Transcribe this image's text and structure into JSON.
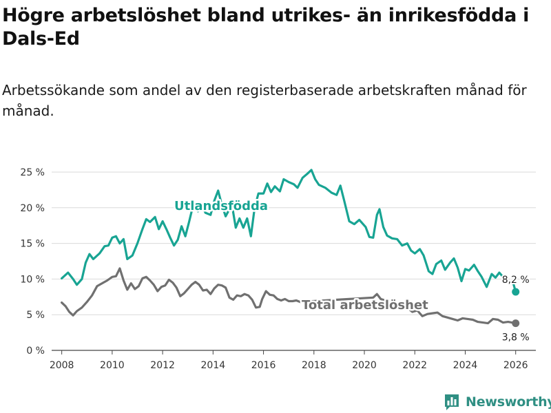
{
  "title": "Högre arbetslöshet bland utrikes- än inrikesfödda i Dals-Ed",
  "subtitle": "Arbetssökande som andel av den registerbaserade arbetskraften månad för månad.",
  "brand": {
    "name": "Newsworthy",
    "icon": "bar-chart-logo-icon",
    "color": "#2f8f83"
  },
  "chart_data": {
    "type": "line",
    "title": "Högre arbetslöshet bland utrikes- än inrikesfödda i Dals-Ed",
    "xlabel": "",
    "ylabel": "",
    "xlim": [
      2007.6,
      2026.8
    ],
    "ylim": [
      0,
      25
    ],
    "grid": true,
    "x_ticks": [
      2008,
      2010,
      2012,
      2014,
      2016,
      2018,
      2020,
      2022,
      2024,
      2026
    ],
    "x_tick_labels": [
      "2008",
      "2010",
      "2012",
      "2014",
      "2016",
      "2018",
      "2020",
      "2022",
      "2024",
      "2026"
    ],
    "y_ticks": [
      0,
      5,
      10,
      15,
      20,
      25
    ],
    "y_tick_labels": [
      "0 %",
      "5 %",
      "10 %",
      "15 %",
      "20 %",
      "25 %"
    ],
    "series": [
      {
        "name": "Utlandsfödda",
        "color": "#18a493",
        "end_label": "8,2 %",
        "points": [
          [
            2008.0,
            10.1
          ],
          [
            2008.25,
            10.9
          ],
          [
            2008.45,
            10.0
          ],
          [
            2008.6,
            9.2
          ],
          [
            2008.8,
            10.0
          ],
          [
            2008.95,
            12.3
          ],
          [
            2009.1,
            13.5
          ],
          [
            2009.25,
            12.8
          ],
          [
            2009.5,
            13.6
          ],
          [
            2009.7,
            14.6
          ],
          [
            2009.85,
            14.7
          ],
          [
            2010.0,
            15.8
          ],
          [
            2010.15,
            16.0
          ],
          [
            2010.3,
            15.0
          ],
          [
            2010.45,
            15.6
          ],
          [
            2010.6,
            12.8
          ],
          [
            2010.8,
            13.3
          ],
          [
            2011.0,
            15.0
          ],
          [
            2011.2,
            17.0
          ],
          [
            2011.35,
            18.4
          ],
          [
            2011.5,
            18.0
          ],
          [
            2011.7,
            18.7
          ],
          [
            2011.85,
            17.0
          ],
          [
            2012.0,
            18.1
          ],
          [
            2012.15,
            17.0
          ],
          [
            2012.3,
            15.8
          ],
          [
            2012.45,
            14.7
          ],
          [
            2012.6,
            15.5
          ],
          [
            2012.75,
            17.4
          ],
          [
            2012.9,
            16.0
          ],
          [
            2013.05,
            18.0
          ],
          [
            2013.2,
            20.2
          ],
          [
            2013.4,
            19.5
          ],
          [
            2013.55,
            20.3
          ],
          [
            2013.7,
            19.3
          ],
          [
            2013.9,
            19.0
          ],
          [
            2014.05,
            21.0
          ],
          [
            2014.2,
            22.4
          ],
          [
            2014.35,
            20.4
          ],
          [
            2014.5,
            18.8
          ],
          [
            2014.65,
            19.8
          ],
          [
            2014.75,
            20.4
          ],
          [
            2014.9,
            17.2
          ],
          [
            2015.05,
            18.5
          ],
          [
            2015.2,
            17.2
          ],
          [
            2015.35,
            18.5
          ],
          [
            2015.5,
            16.0
          ],
          [
            2015.65,
            20.0
          ],
          [
            2015.8,
            22.0
          ],
          [
            2016.0,
            22.0
          ],
          [
            2016.15,
            23.4
          ],
          [
            2016.3,
            22.2
          ],
          [
            2016.45,
            23.0
          ],
          [
            2016.65,
            22.3
          ],
          [
            2016.8,
            24.0
          ],
          [
            2017.0,
            23.6
          ],
          [
            2017.2,
            23.3
          ],
          [
            2017.35,
            22.8
          ],
          [
            2017.55,
            24.2
          ],
          [
            2017.75,
            24.8
          ],
          [
            2017.9,
            25.3
          ],
          [
            2018.05,
            24.0
          ],
          [
            2018.2,
            23.2
          ],
          [
            2018.45,
            22.8
          ],
          [
            2018.7,
            22.1
          ],
          [
            2018.9,
            21.8
          ],
          [
            2019.05,
            23.1
          ],
          [
            2019.2,
            21.0
          ],
          [
            2019.4,
            18.1
          ],
          [
            2019.6,
            17.7
          ],
          [
            2019.8,
            18.3
          ],
          [
            2020.05,
            17.3
          ],
          [
            2020.2,
            15.9
          ],
          [
            2020.35,
            15.8
          ],
          [
            2020.5,
            19.0
          ],
          [
            2020.6,
            19.8
          ],
          [
            2020.75,
            17.3
          ],
          [
            2020.9,
            16.1
          ],
          [
            2021.1,
            15.7
          ],
          [
            2021.3,
            15.6
          ],
          [
            2021.5,
            14.7
          ],
          [
            2021.7,
            15.0
          ],
          [
            2021.85,
            14.0
          ],
          [
            2022.0,
            13.6
          ],
          [
            2022.2,
            14.2
          ],
          [
            2022.35,
            13.3
          ],
          [
            2022.55,
            11.1
          ],
          [
            2022.7,
            10.7
          ],
          [
            2022.85,
            12.1
          ],
          [
            2023.05,
            12.6
          ],
          [
            2023.2,
            11.3
          ],
          [
            2023.4,
            12.3
          ],
          [
            2023.55,
            12.9
          ],
          [
            2023.7,
            11.6
          ],
          [
            2023.85,
            9.7
          ],
          [
            2024.0,
            11.4
          ],
          [
            2024.15,
            11.2
          ],
          [
            2024.35,
            12.0
          ],
          [
            2024.5,
            11.1
          ],
          [
            2024.65,
            10.3
          ],
          [
            2024.85,
            8.9
          ],
          [
            2025.05,
            10.7
          ],
          [
            2025.2,
            10.2
          ],
          [
            2025.35,
            10.9
          ],
          [
            2025.5,
            10.3
          ],
          [
            2025.65,
            9.7
          ],
          [
            2025.9,
            9.5
          ],
          [
            2026.0,
            8.2
          ]
        ]
      },
      {
        "name": "Total arbetslöshet",
        "color": "#707070",
        "end_label": "3,8 %",
        "points": [
          [
            2008.0,
            6.7
          ],
          [
            2008.15,
            6.2
          ],
          [
            2008.3,
            5.4
          ],
          [
            2008.45,
            4.9
          ],
          [
            2008.6,
            5.5
          ],
          [
            2008.8,
            6.0
          ],
          [
            2009.0,
            6.8
          ],
          [
            2009.2,
            7.7
          ],
          [
            2009.4,
            9.0
          ],
          [
            2009.6,
            9.4
          ],
          [
            2009.8,
            9.8
          ],
          [
            2010.0,
            10.3
          ],
          [
            2010.15,
            10.4
          ],
          [
            2010.3,
            11.5
          ],
          [
            2010.45,
            9.8
          ],
          [
            2010.6,
            8.5
          ],
          [
            2010.75,
            9.4
          ],
          [
            2010.9,
            8.6
          ],
          [
            2011.05,
            9.0
          ],
          [
            2011.2,
            10.1
          ],
          [
            2011.35,
            10.3
          ],
          [
            2011.5,
            9.8
          ],
          [
            2011.65,
            9.2
          ],
          [
            2011.8,
            8.3
          ],
          [
            2011.95,
            8.9
          ],
          [
            2012.1,
            9.1
          ],
          [
            2012.25,
            9.9
          ],
          [
            2012.4,
            9.5
          ],
          [
            2012.55,
            8.8
          ],
          [
            2012.7,
            7.6
          ],
          [
            2012.85,
            8.0
          ],
          [
            2013.0,
            8.6
          ],
          [
            2013.15,
            9.2
          ],
          [
            2013.3,
            9.6
          ],
          [
            2013.45,
            9.2
          ],
          [
            2013.6,
            8.4
          ],
          [
            2013.75,
            8.5
          ],
          [
            2013.9,
            7.9
          ],
          [
            2014.05,
            8.7
          ],
          [
            2014.2,
            9.2
          ],
          [
            2014.35,
            9.1
          ],
          [
            2014.5,
            8.8
          ],
          [
            2014.65,
            7.4
          ],
          [
            2014.8,
            7.1
          ],
          [
            2014.95,
            7.7
          ],
          [
            2015.1,
            7.6
          ],
          [
            2015.25,
            7.9
          ],
          [
            2015.4,
            7.7
          ],
          [
            2015.55,
            7.1
          ],
          [
            2015.7,
            6.0
          ],
          [
            2015.85,
            6.1
          ],
          [
            2015.95,
            7.2
          ],
          [
            2016.1,
            8.3
          ],
          [
            2016.25,
            7.8
          ],
          [
            2016.4,
            7.7
          ],
          [
            2016.55,
            7.2
          ],
          [
            2016.7,
            7.0
          ],
          [
            2016.85,
            7.2
          ],
          [
            2017.0,
            6.9
          ],
          [
            2017.15,
            6.9
          ],
          [
            2017.3,
            7.0
          ],
          [
            2017.45,
            6.8
          ],
          [
            2020.35,
            7.4
          ],
          [
            2020.5,
            7.9
          ],
          [
            2020.65,
            7.2
          ],
          [
            2021.7,
            6.0
          ],
          [
            2021.9,
            5.4
          ],
          [
            2022.1,
            5.6
          ],
          [
            2022.3,
            4.8
          ],
          [
            2022.5,
            5.1
          ],
          [
            2022.7,
            5.2
          ],
          [
            2022.9,
            5.3
          ],
          [
            2023.1,
            4.8
          ],
          [
            2023.3,
            4.6
          ],
          [
            2023.5,
            4.4
          ],
          [
            2023.7,
            4.2
          ],
          [
            2023.9,
            4.5
          ],
          [
            2024.1,
            4.4
          ],
          [
            2024.3,
            4.3
          ],
          [
            2024.5,
            4.0
          ],
          [
            2024.7,
            3.9
          ],
          [
            2024.9,
            3.8
          ],
          [
            2025.1,
            4.4
          ],
          [
            2025.3,
            4.3
          ],
          [
            2025.5,
            3.9
          ],
          [
            2025.7,
            4.0
          ],
          [
            2026.0,
            3.8
          ]
        ]
      }
    ]
  }
}
